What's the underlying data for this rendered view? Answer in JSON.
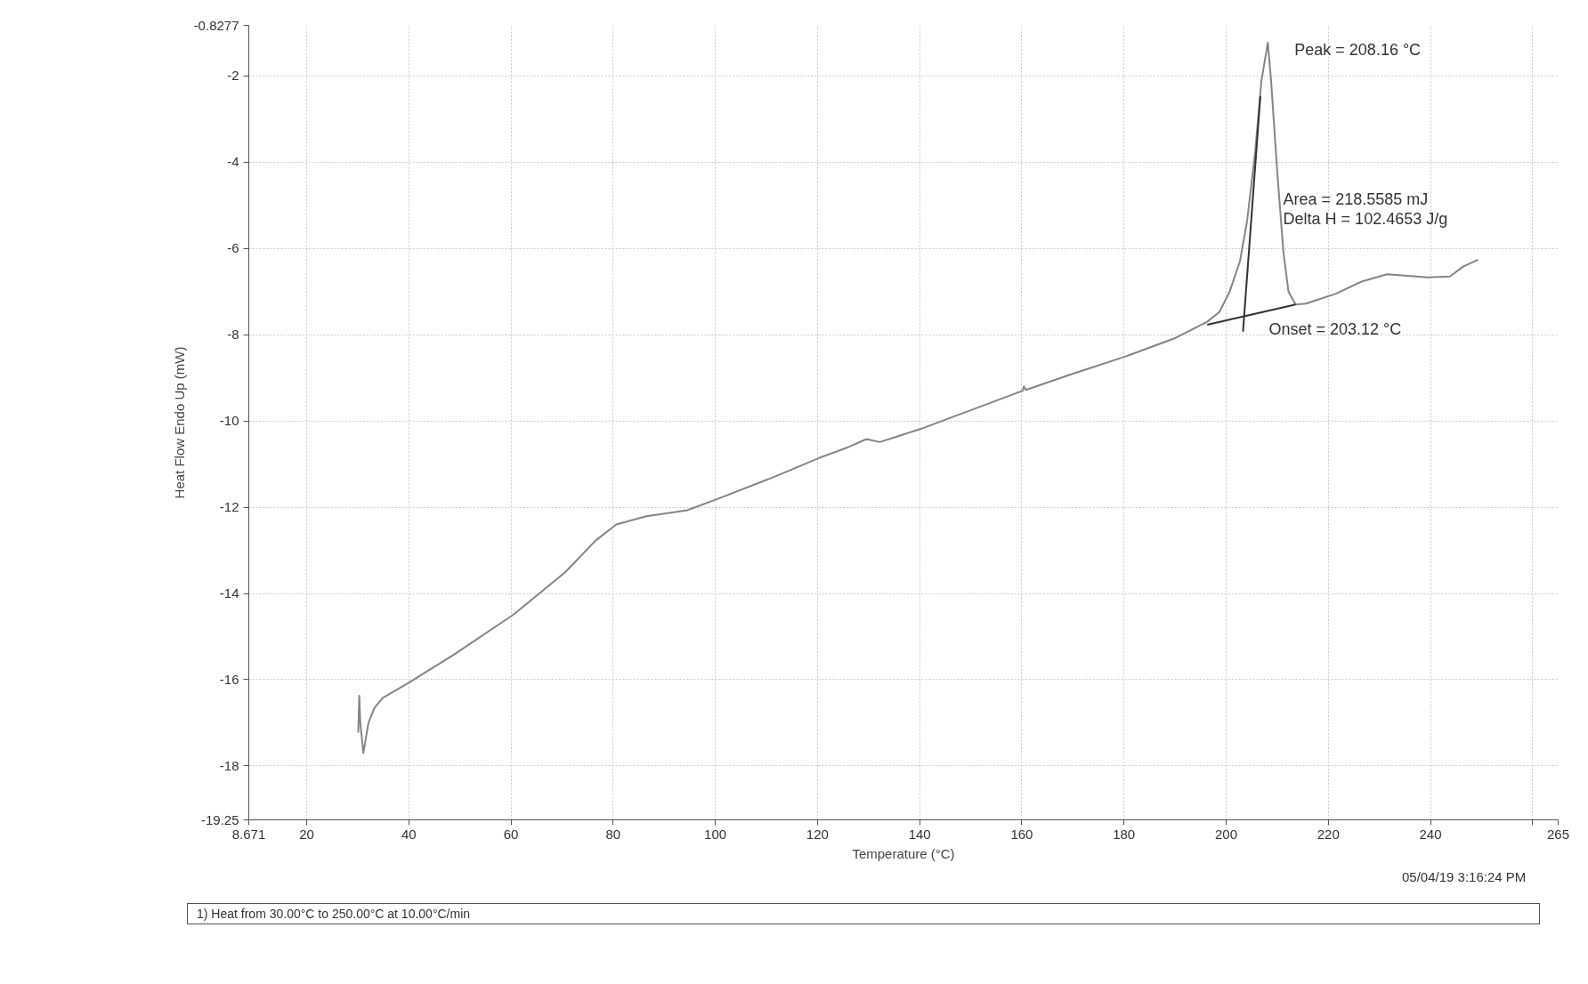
{
  "chart_data": {
    "type": "line",
    "xlabel": "Temperature (°C)",
    "ylabel": "Heat Flow Endo Up (mW)",
    "xlim": [
      8.671,
      265
    ],
    "ylim": [
      -19.25,
      -0.8277
    ],
    "xticks": [
      8.671,
      20,
      40,
      60,
      80,
      100,
      120,
      140,
      160,
      180,
      200,
      220,
      240,
      {
        "value": 260,
        "label": null
      },
      265
    ],
    "yticks": [
      -19.25,
      -18,
      -16,
      -14,
      -12,
      -10,
      -8,
      -6,
      -4,
      -2,
      -0.8277
    ],
    "grid": true,
    "line_style": "solid",
    "marker": "none",
    "series": [
      {
        "color": "#858585",
        "x": [
          30.1,
          30.3,
          30.5,
          31.1,
          32.1,
          33.3,
          34.9,
          40,
          48.8,
          60.5,
          70.6,
          76.6,
          80.6,
          86.5,
          94.5,
          100.4,
          110.4,
          120.3,
          126.2,
          129.6,
          132.2,
          140.1,
          148,
          160.2,
          160.4,
          160.8,
          169.9,
          180.2,
          189.8,
          196.3,
          198.7,
          200.7,
          202.7,
          204.1,
          205.7,
          206.9,
          208.16,
          208.8,
          210,
          211.2,
          212.2,
          213.6,
          215.6,
          221.5,
          226.5,
          231.5,
          239.4,
          243.8,
          246.4,
          249.3
        ],
        "values": [
          -17.23,
          -16.37,
          -17.0,
          -17.7,
          -17.0,
          -16.65,
          -16.42,
          -16.07,
          -15.42,
          -14.49,
          -13.51,
          -12.77,
          -12.4,
          -12.21,
          -12.07,
          -11.81,
          -11.35,
          -10.86,
          -10.6,
          -10.42,
          -10.49,
          -10.19,
          -9.84,
          -9.3,
          -9.2,
          -9.28,
          -8.91,
          -8.51,
          -8.09,
          -7.7,
          -7.47,
          -7.0,
          -6.3,
          -5.37,
          -3.74,
          -2.12,
          -1.23,
          -2.12,
          -4.21,
          -6.07,
          -7.0,
          -7.3,
          -7.28,
          -7.05,
          -6.77,
          -6.6,
          -6.67,
          -6.65,
          -6.42,
          -6.26
        ]
      },
      {
        "color": "#333333",
        "x": [
          196.3,
          213.6
        ],
        "values": [
          -7.77,
          -7.3
        ]
      },
      {
        "color": "#333333",
        "x": [
          203.3,
          206.7
        ],
        "values": [
          -7.93,
          -2.47
        ]
      }
    ],
    "annotations": [
      {
        "text": "Peak = 208.16 °C",
        "x": 208.16,
        "y": -1.23
      },
      {
        "text": "Onset = 203.12 °C",
        "x": 203.12,
        "y": -7.7
      },
      "Area = 218.5585 mJ",
      "Delta H = 102.4653 J/g",
      "05/04/19 3:16:24 PM",
      "1) Heat from 30.00°C to 250.00°C at 10.00°C/min"
    ]
  }
}
